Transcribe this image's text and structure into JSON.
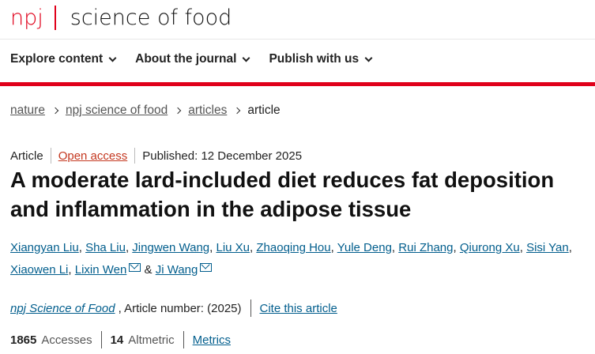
{
  "header": {
    "logo_npj": "npj",
    "logo_name": "science of food",
    "brand_color": "#e0001a"
  },
  "nav": [
    "Explore content",
    "About the journal",
    "Publish with us"
  ],
  "breadcrumb": [
    "nature",
    "npj science of food",
    "articles",
    "article"
  ],
  "meta": {
    "type": "Article",
    "access": "Open access",
    "published": "Published: 12 December 2025"
  },
  "title": "A moderate lard-included diet reduces fat deposition and inflammation in the adipose tissue",
  "authors": [
    "Xiangyan Liu",
    "Sha Liu",
    "Jingwen Wang",
    "Liu Xu",
    "Zhaoqing Hou",
    "Yule Deng",
    "Rui Zhang",
    "Qiurong Xu",
    "Sisi Yan",
    "Xiaowen Li",
    "Lixin Wen",
    "Ji Wang"
  ],
  "authors_amp": "&",
  "journal": {
    "name": "npj Science of Food",
    "article_number": ", Article number:  (2025)",
    "cite": "Cite this article"
  },
  "metrics": {
    "accesses": "1865",
    "accesses_label": "Accesses",
    "altmetric": "14",
    "altmetric_label": "Altmetric",
    "link": "Metrics"
  }
}
